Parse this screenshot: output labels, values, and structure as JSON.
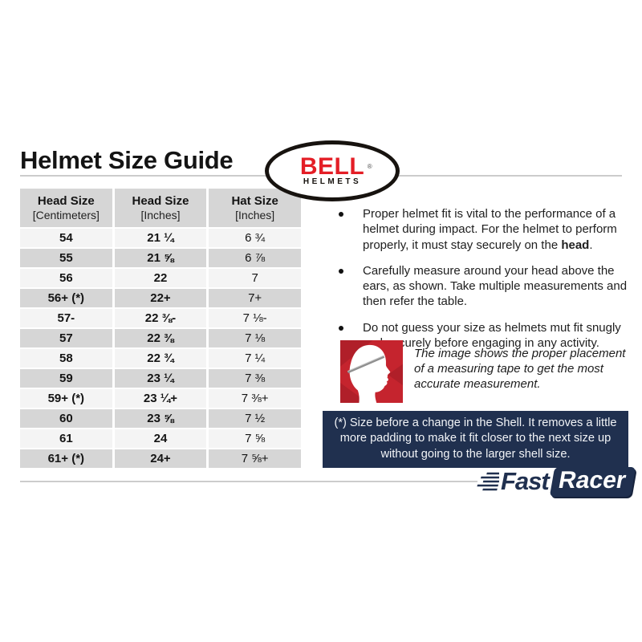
{
  "page_title": "Helmet Size Guide",
  "bell_logo": {
    "brand": "BELL",
    "registered": "®",
    "sub": "HELMETS"
  },
  "size_table": {
    "headers": [
      {
        "title": "Head Size",
        "unit": "[Centimeters]"
      },
      {
        "title": "Head Size",
        "unit": "[Inches]"
      },
      {
        "title": "Hat Size",
        "unit": "[Inches]"
      }
    ],
    "rows": [
      [
        "54",
        "21 ¼",
        "6 ¾"
      ],
      [
        "55",
        "21 ⅝",
        "6 ⅞"
      ],
      [
        "56",
        "22",
        "7"
      ],
      [
        "56+ (*)",
        "22+",
        "7+"
      ],
      [
        "57-",
        "22 ⅜-",
        "7 ⅛-"
      ],
      [
        "57",
        "22 ⅜",
        "7 ⅛"
      ],
      [
        "58",
        "22 ¾",
        "7 ¼"
      ],
      [
        "59",
        "23 ¼",
        "7 ⅜"
      ],
      [
        "59+ (*)",
        "23 ¼+",
        "7 ⅜+"
      ],
      [
        "60",
        "23 ⅝",
        "7 ½"
      ],
      [
        "61",
        "24",
        "7 ⅝"
      ],
      [
        "61+ (*)",
        "24+",
        "7 ⅝+"
      ]
    ]
  },
  "bullets": {
    "first": {
      "pre": "Proper helmet fit is vital to the performance of a helmet during impact. For the helmet to perform properly, it must stay securely on the ",
      "bold": "head",
      "post": "."
    },
    "second": "Carefully measure around your head above the ears, as shown. Take multiple measurements and then refer the table.",
    "third": "Do not guess your size as helmets mut fit snugly and securely before engaging in any activity."
  },
  "measurement": {
    "caption": "The image shows the proper placement of a measuring tape to get the most accurate measurement.",
    "image_description": "head-profile-with-measuring-tape"
  },
  "footnote": "(*) Size before a change in the Shell. It removes a little more padding to make it fit closer to the next size up without going to the larger shell size.",
  "footer_logo": {
    "fast": "Fast",
    "racer": "Racer"
  },
  "colors": {
    "bell_red": "#e41e26",
    "navy": "#20304f",
    "row_light": "#f4f4f4",
    "row_dark": "#d6d6d6",
    "head_image_red": "#c5242e",
    "rule_gray": "#cccccc"
  }
}
